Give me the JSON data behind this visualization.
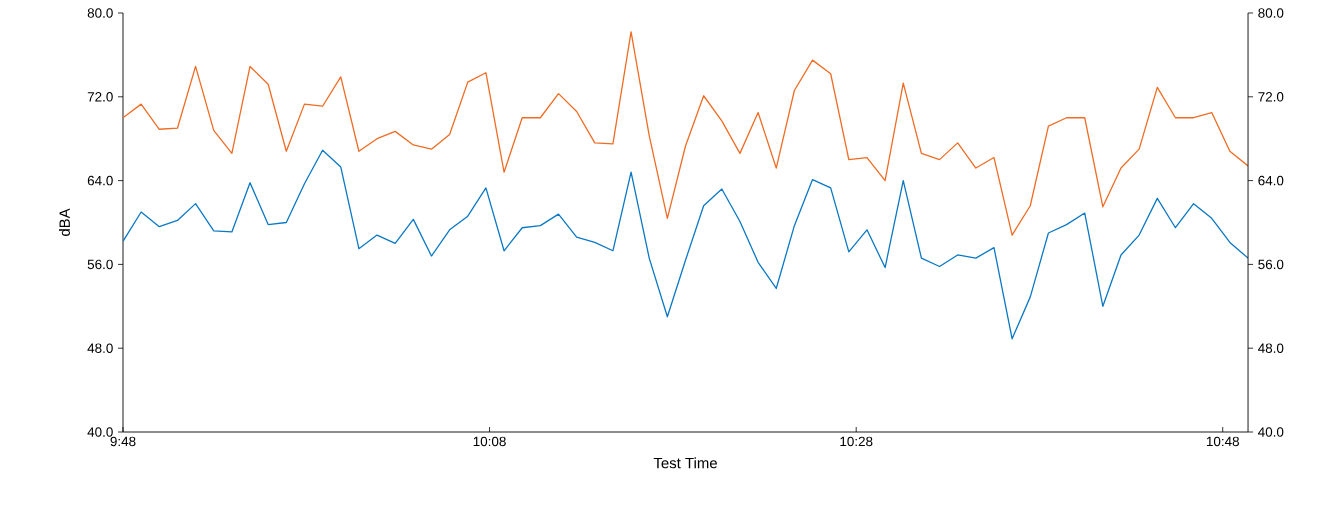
{
  "chart_data": {
    "type": "line",
    "xlabel": "Test Time",
    "ylabel": "dBA",
    "x": [
      9.8,
      9.8165,
      9.833,
      9.8495,
      9.866,
      9.8825,
      9.899,
      9.9155,
      9.932,
      9.9485,
      9.965,
      9.9815,
      9.998,
      10.0145,
      10.031,
      10.0475,
      10.064,
      10.0805,
      10.097,
      10.1135,
      10.13,
      10.1465,
      10.163,
      10.1795,
      10.196,
      10.2125,
      10.229,
      10.2455,
      10.262,
      10.2785,
      10.295,
      10.3115,
      10.328,
      10.3445,
      10.361,
      10.3775,
      10.394,
      10.4105,
      10.427,
      10.4435,
      10.46,
      10.4765,
      10.493,
      10.5095,
      10.526,
      10.5425,
      10.559,
      10.5755,
      10.592,
      10.6085,
      10.625,
      10.6415,
      10.658,
      10.6745,
      10.691,
      10.7075,
      10.724,
      10.7405,
      10.757,
      10.7735,
      10.79,
      10.8065,
      10.823
    ],
    "series": [
      {
        "color": "#ef6c24",
        "values": [
          70.0,
          71.3,
          68.9,
          69.0,
          74.9,
          68.8,
          66.6,
          74.9,
          73.2,
          66.8,
          71.3,
          71.1,
          73.9,
          66.8,
          68.0,
          68.7,
          67.4,
          67.0,
          68.4,
          73.4,
          74.3,
          64.8,
          70.0,
          70.0,
          72.3,
          70.6,
          67.6,
          67.5,
          78.2,
          68.3,
          60.4,
          67.3,
          72.1,
          69.7,
          66.6,
          70.5,
          65.2,
          72.6,
          75.5,
          74.2,
          66.0,
          66.2,
          64.0,
          73.3,
          66.6,
          66.0,
          67.6,
          65.2,
          66.2,
          58.8,
          61.6,
          69.2,
          70.0,
          70.0,
          61.5,
          65.2,
          67.0,
          72.9,
          70.0,
          70.0,
          70.5,
          66.8,
          65.4
        ]
      },
      {
        "color": "#0b78c4",
        "values": [
          58.2,
          61.0,
          59.6,
          60.2,
          61.8,
          59.2,
          59.1,
          63.8,
          59.8,
          60.0,
          63.7,
          66.9,
          65.3,
          57.5,
          58.8,
          58.0,
          60.3,
          56.8,
          59.3,
          60.6,
          63.3,
          57.3,
          59.5,
          59.7,
          60.8,
          58.6,
          58.1,
          57.3,
          64.8,
          56.6,
          51.0,
          56.4,
          61.6,
          63.2,
          60.1,
          56.2,
          53.7,
          59.7,
          64.1,
          63.3,
          57.2,
          59.3,
          55.7,
          64.0,
          56.6,
          55.8,
          56.9,
          56.6,
          57.6,
          48.9,
          52.9,
          59.0,
          59.8,
          60.9,
          52.0,
          56.9,
          58.8,
          62.3,
          59.5,
          61.8,
          60.4,
          58.1,
          56.6
        ]
      }
    ],
    "xlim": [
      9.8,
      10.823
    ],
    "xticks": [
      {
        "value": 9.8,
        "label": "9:48"
      },
      {
        "value": 10.1333,
        "label": "10:08"
      },
      {
        "value": 10.4667,
        "label": "10:28"
      },
      {
        "value": 10.8,
        "label": "10:48"
      }
    ],
    "ylim": [
      40,
      80
    ],
    "yticks": [
      {
        "value": 40,
        "label": "40.0"
      },
      {
        "value": 48,
        "label": "48.0"
      },
      {
        "value": 56,
        "label": "56.0"
      },
      {
        "value": 64,
        "label": "64.0"
      },
      {
        "value": 72,
        "label": "72.0"
      },
      {
        "value": 80,
        "label": "80.0"
      }
    ],
    "y2lim": [
      40,
      80
    ],
    "y2ticks": [
      {
        "value": 40,
        "label": "40.0"
      },
      {
        "value": 48,
        "label": "48.0"
      },
      {
        "value": 56,
        "label": "56.0"
      },
      {
        "value": 64,
        "label": "64.0"
      },
      {
        "value": 72,
        "label": "72.0"
      },
      {
        "value": 80,
        "label": "80.0"
      }
    ],
    "grid": false,
    "legend": false,
    "marker": "none",
    "line_style": "solid"
  }
}
